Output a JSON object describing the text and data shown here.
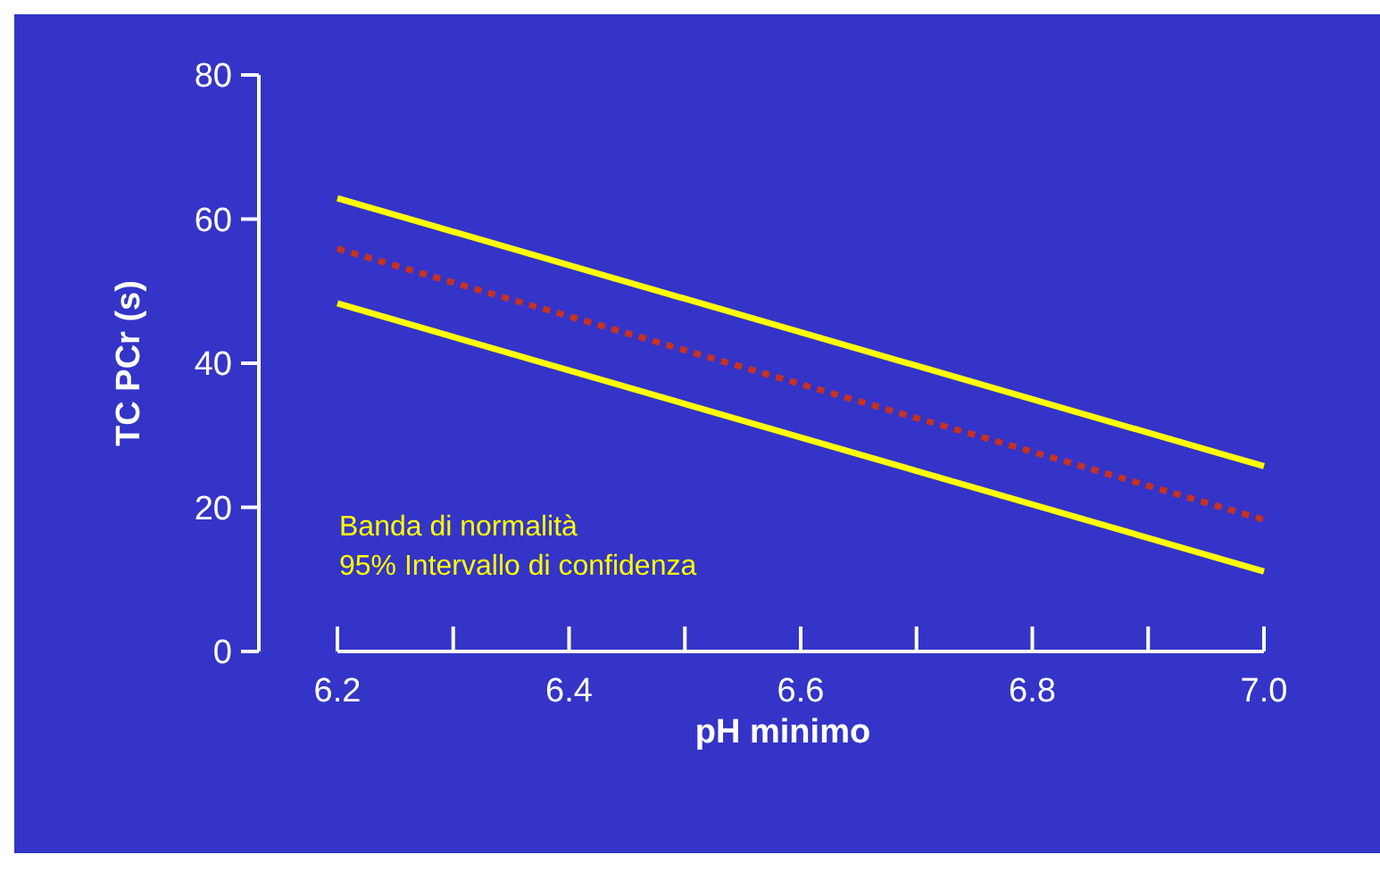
{
  "chart_data": {
    "type": "line",
    "xlabel": "pH minimo",
    "ylabel": "TC PCr (s)",
    "x": [
      6.2,
      7.0
    ],
    "series": [
      {
        "color": "#ffff00",
        "values": [
          62.9,
          25.7
        ],
        "line_style": "solid"
      },
      {
        "color": "#c8321e",
        "values": [
          55.9,
          18.3
        ],
        "line_style": "dotted"
      },
      {
        "color": "#ffff00",
        "values": [
          48.3,
          11.1
        ],
        "line_style": "solid"
      }
    ],
    "xlim": [
      6.2,
      7.0
    ],
    "xticks": [
      6.2,
      {
        "value": 6.3,
        "label": null
      },
      6.4,
      {
        "value": 6.5,
        "label": null
      },
      6.6,
      {
        "value": 6.7,
        "label": null
      },
      6.8,
      {
        "value": 6.9,
        "label": null
      },
      {
        "value": 7.0,
        "label": "7.0"
      }
    ],
    "ylim": [
      0,
      80
    ],
    "yticks": [
      0,
      20,
      40,
      60,
      80
    ],
    "grid": false,
    "marker": "none",
    "annotations": [
      "Banda di normalità",
      "95% Intervallo di confidenza"
    ]
  }
}
